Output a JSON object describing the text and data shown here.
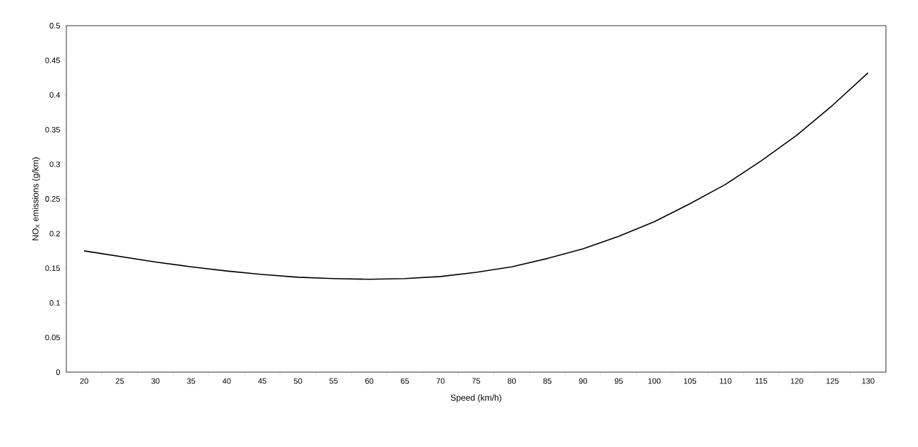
{
  "chart_data": {
    "type": "line",
    "xlabel": "Speed (km/h)",
    "ylabel": "NO$_{X}$ emissions (g/km)",
    "categories": [
      "20",
      "25",
      "30",
      "35",
      "40",
      "45",
      "50",
      "55",
      "60",
      "65",
      "70",
      "75",
      "80",
      "85",
      "90",
      "95",
      "100",
      "105",
      "110",
      "115",
      "120",
      "125",
      "130"
    ],
    "series": [
      {
        "color": "#000000",
        "values": [
          0.175,
          0.167,
          0.159,
          0.152,
          0.146,
          0.141,
          0.137,
          0.135,
          0.134,
          0.135,
          0.138,
          0.144,
          0.152,
          0.164,
          0.178,
          0.196,
          0.217,
          0.243,
          0.271,
          0.305,
          0.342,
          0.385,
          0.432
        ]
      }
    ],
    "ylim": [
      0,
      0.5
    ],
    "yticks": [
      0,
      0.05,
      0.1,
      0.15,
      0.2,
      0.25,
      0.3,
      0.35,
      0.4,
      0.45,
      0.5
    ],
    "marker": "none",
    "line_style": "solid"
  }
}
